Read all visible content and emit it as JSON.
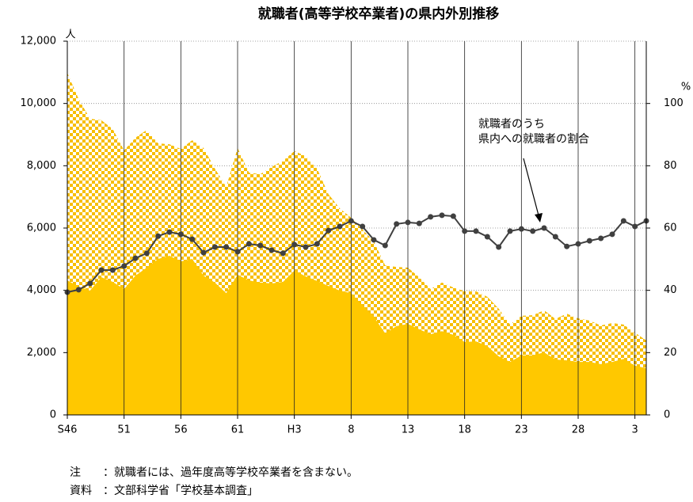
{
  "chart_data": {
    "type": "area",
    "title": "就職者(高等学校卒業者)の県内外別推移",
    "y_unit": "人",
    "y2_unit": "%",
    "categories": [
      "S46",
      null,
      null,
      null,
      null,
      "51",
      null,
      null,
      null,
      null,
      "56",
      null,
      null,
      null,
      null,
      "61",
      null,
      null,
      null,
      null,
      "H3",
      null,
      null,
      null,
      null,
      "8",
      null,
      null,
      null,
      null,
      "13",
      null,
      null,
      null,
      null,
      "18",
      null,
      null,
      null,
      null,
      "23",
      null,
      null,
      null,
      null,
      "28",
      null,
      null,
      null,
      null,
      "3",
      null
    ],
    "series": [
      {
        "type": "area",
        "color": "#f7be00",
        "pattern": "checker",
        "values": [
          10980,
          10140,
          9510,
          9460,
          9180,
          8490,
          8900,
          9150,
          8720,
          8690,
          8540,
          8820,
          8570,
          7910,
          7320,
          8570,
          7780,
          7730,
          7960,
          8160,
          8470,
          8310,
          7910,
          7090,
          6630,
          6330,
          5950,
          5570,
          4800,
          4750,
          4730,
          4420,
          4040,
          4250,
          4090,
          3970,
          3970,
          3790,
          3410,
          2900,
          3180,
          3200,
          3360,
          3080,
          3250,
          3100,
          3030,
          2870,
          2950,
          2900,
          2640,
          2390
        ]
      },
      {
        "type": "area",
        "color": "#ffc800",
        "values": [
          4320,
          4120,
          3990,
          4420,
          4270,
          4040,
          4470,
          4730,
          5010,
          5110,
          4930,
          5010,
          4470,
          4250,
          3910,
          4500,
          4320,
          4250,
          4220,
          4270,
          4630,
          4450,
          4300,
          4140,
          3990,
          3910,
          3510,
          3150,
          2620,
          2850,
          2920,
          2750,
          2590,
          2690,
          2570,
          2340,
          2360,
          2210,
          1880,
          1700,
          1910,
          1910,
          2010,
          1780,
          1750,
          1700,
          1700,
          1630,
          1700,
          1800,
          1580,
          1500
        ]
      },
      {
        "type": "line",
        "axis": "y2",
        "color": "#404040",
        "values": [
          39.4,
          40.2,
          42.2,
          46.5,
          46.5,
          47.8,
          50.3,
          51.9,
          57.4,
          58.7,
          58.0,
          56.4,
          52.1,
          53.9,
          53.9,
          52.4,
          54.9,
          54.4,
          52.9,
          51.9,
          54.7,
          53.9,
          54.9,
          59.2,
          60.5,
          62.3,
          60.5,
          56.2,
          54.4,
          61.3,
          61.8,
          61.5,
          63.6,
          64.1,
          63.8,
          59.0,
          59.0,
          57.2,
          53.9,
          59.0,
          59.7,
          59.0,
          60.0,
          57.2,
          54.1,
          54.9,
          55.9,
          56.7,
          58.0,
          62.3,
          60.5,
          62.3
        ]
      }
    ],
    "ylim": [
      0,
      12000
    ],
    "yticks": [
      0,
      {
        "value": 2000,
        "label": "2,000"
      },
      {
        "value": 4000,
        "label": "4,000"
      },
      {
        "value": 6000,
        "label": "6,000"
      },
      {
        "value": 8000,
        "label": "8,000"
      },
      {
        "value": 10000,
        "label": "10,000"
      },
      {
        "value": 12000,
        "label": "12,000"
      }
    ],
    "y2lim": [
      0,
      120
    ],
    "y2ticks": [
      0,
      20,
      40,
      60,
      80,
      100
    ],
    "grid": true,
    "annotation": [
      "就職者のうち",
      "県内への就職者の割合"
    ],
    "notes": [
      [
        "注",
        "：就職者には、過年度高等学校卒業者を含まない。"
      ],
      [
        "資料",
        "：文部科学省「学校基本調査」"
      ]
    ]
  }
}
